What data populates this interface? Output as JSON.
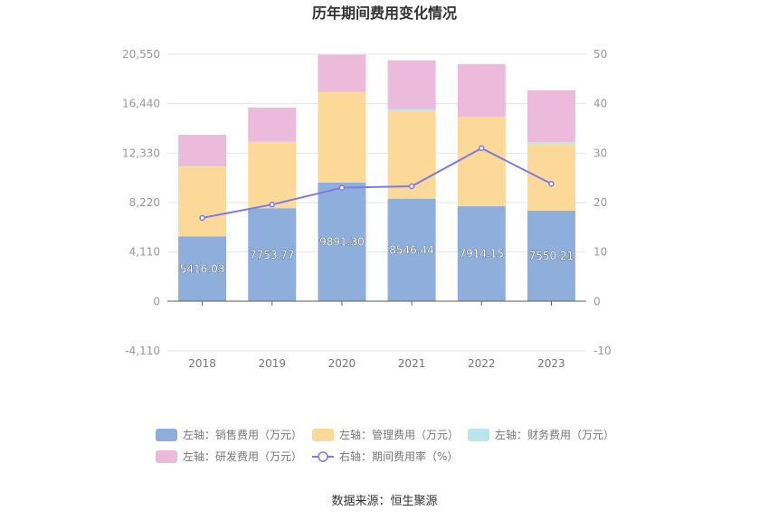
{
  "chart_data": {
    "type": "bar",
    "title": "历年期间费用变化情况",
    "categories": [
      "2018",
      "2019",
      "2020",
      "2021",
      "2022",
      "2023"
    ],
    "left_axis": {
      "ticks": [
        "-4,110",
        "0",
        "4,110",
        "8,220",
        "12,330",
        "16,440",
        "20,550"
      ],
      "ylim": [
        -4110,
        20550
      ]
    },
    "right_axis": {
      "ticks": [
        "-10",
        "0",
        "10",
        "20",
        "30",
        "40",
        "50"
      ],
      "ylim": [
        -10,
        50
      ]
    },
    "series": [
      {
        "name": "左轴：销售费用（万元）",
        "axis": "left",
        "kind": "bar",
        "color": "#8eaedb",
        "values": [
          5416.03,
          7753.77,
          9891.3,
          8546.44,
          7914.15,
          7550.21
        ],
        "labels": [
          "5416.03",
          "7753.77",
          "9891.30",
          "8546.44",
          "7914.15",
          "7550.21"
        ]
      },
      {
        "name": "左轴：管理费用（万元）",
        "axis": "left",
        "kind": "bar",
        "color": "#fdd999",
        "values": [
          5800,
          5500,
          7500,
          7300,
          7400,
          5500
        ]
      },
      {
        "name": "左轴：财务费用（万元）",
        "axis": "left",
        "kind": "bar",
        "color": "#bce7ea",
        "values": [
          20,
          20,
          20,
          150,
          20,
          200
        ]
      },
      {
        "name": "左轴：研发费用（万元）",
        "axis": "left",
        "kind": "bar",
        "color": "#ecbada",
        "values": [
          2620,
          2850,
          3100,
          4050,
          4400,
          4300
        ]
      },
      {
        "name": "右轴：期间费用率（%）",
        "axis": "right",
        "kind": "line",
        "color": "#7b7be8",
        "values": [
          16.9,
          19.6,
          23.0,
          23.3,
          31.0,
          23.8
        ]
      }
    ],
    "legend_position": "bottom",
    "grid": true
  },
  "source": "数据来源：恒生聚源"
}
